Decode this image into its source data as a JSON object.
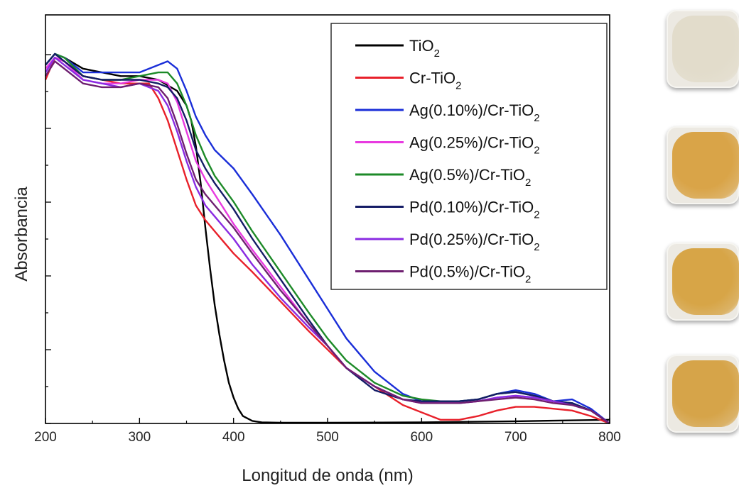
{
  "chart_data": {
    "type": "line",
    "xlabel": "Longitud de onda (nm)",
    "ylabel": "Absorbancia",
    "xlim": [
      200,
      800
    ],
    "ylim": [
      0,
      1.05
    ],
    "xticks": [
      200,
      300,
      400,
      500,
      600,
      700,
      800
    ],
    "grid": false,
    "legend_position": "top-right",
    "series": [
      {
        "name": "TiO2",
        "label_main": "TiO",
        "label_sub": "2",
        "label_tail": "",
        "color": "#000000",
        "x": [
          200,
          210,
          220,
          240,
          260,
          280,
          300,
          320,
          340,
          350,
          355,
          360,
          365,
          370,
          375,
          380,
          385,
          390,
          395,
          400,
          405,
          410,
          420,
          430,
          450,
          500,
          600,
          700,
          800
        ],
        "y": [
          0.97,
          1.0,
          0.99,
          0.96,
          0.95,
          0.94,
          0.94,
          0.93,
          0.9,
          0.86,
          0.82,
          0.75,
          0.65,
          0.53,
          0.42,
          0.32,
          0.24,
          0.17,
          0.11,
          0.07,
          0.04,
          0.02,
          0.007,
          0.003,
          0.002,
          0.002,
          0.003,
          0.006,
          0.01
        ]
      },
      {
        "name": "Cr-TiO2",
        "label_main": "Cr-TiO",
        "label_sub": "2",
        "label_tail": "",
        "color": "#e8202a",
        "x": [
          200,
          210,
          220,
          240,
          260,
          280,
          300,
          310,
          320,
          330,
          340,
          350,
          360,
          370,
          380,
          390,
          400,
          420,
          450,
          480,
          500,
          520,
          550,
          580,
          600,
          620,
          640,
          660,
          680,
          700,
          720,
          740,
          760,
          780,
          800
        ],
        "y": [
          0.93,
          0.99,
          0.98,
          0.94,
          0.93,
          0.92,
          0.92,
          0.92,
          0.88,
          0.82,
          0.74,
          0.66,
          0.59,
          0.55,
          0.52,
          0.49,
          0.46,
          0.41,
          0.33,
          0.25,
          0.2,
          0.15,
          0.1,
          0.05,
          0.03,
          0.01,
          0.01,
          0.02,
          0.035,
          0.045,
          0.045,
          0.04,
          0.035,
          0.02,
          0.0
        ]
      },
      {
        "name": "Ag(0.10%)/Cr-TiO2",
        "label_main": "Ag(0.10%)/Cr-TiO",
        "label_sub": "2",
        "label_tail": "",
        "color": "#1a2ed8",
        "x": [
          200,
          210,
          220,
          240,
          260,
          280,
          300,
          320,
          330,
          340,
          350,
          360,
          370,
          380,
          400,
          420,
          450,
          480,
          500,
          520,
          550,
          580,
          600,
          620,
          640,
          660,
          680,
          700,
          720,
          740,
          760,
          780,
          800
        ],
        "y": [
          0.97,
          1.0,
          0.99,
          0.95,
          0.95,
          0.95,
          0.95,
          0.97,
          0.98,
          0.96,
          0.9,
          0.83,
          0.78,
          0.74,
          0.69,
          0.62,
          0.51,
          0.39,
          0.31,
          0.23,
          0.14,
          0.08,
          0.06,
          0.06,
          0.06,
          0.065,
          0.08,
          0.09,
          0.08,
          0.06,
          0.065,
          0.04,
          0.0
        ]
      },
      {
        "name": "Ag(0.25%)/Cr-TiO2",
        "label_main": "Ag(0.25%)/Cr-TiO",
        "label_sub": "2",
        "label_tail": "",
        "color": "#e83ae0",
        "x": [
          200,
          210,
          220,
          240,
          260,
          280,
          300,
          320,
          330,
          340,
          350,
          360,
          370,
          380,
          400,
          420,
          450,
          480,
          500,
          520,
          550,
          580,
          600,
          620,
          640,
          660,
          680,
          700,
          720,
          740,
          760,
          780,
          800
        ],
        "y": [
          0.96,
          0.99,
          0.98,
          0.93,
          0.92,
          0.92,
          0.93,
          0.93,
          0.92,
          0.87,
          0.79,
          0.71,
          0.66,
          0.62,
          0.54,
          0.47,
          0.37,
          0.27,
          0.21,
          0.15,
          0.1,
          0.065,
          0.055,
          0.055,
          0.055,
          0.06,
          0.07,
          0.075,
          0.07,
          0.06,
          0.05,
          0.035,
          0.0
        ]
      },
      {
        "name": "Ag(0.5%)/Cr-TiO2",
        "label_main": "Ag(0.5%)/Cr-TiO",
        "label_sub": "2",
        "label_tail": "",
        "color": "#1d8a28",
        "x": [
          200,
          210,
          220,
          240,
          260,
          280,
          300,
          320,
          330,
          340,
          350,
          360,
          370,
          380,
          400,
          420,
          450,
          480,
          500,
          520,
          550,
          580,
          600,
          620,
          640,
          660,
          680,
          700,
          720,
          740,
          760,
          780,
          800
        ],
        "y": [
          0.97,
          1.0,
          0.99,
          0.94,
          0.93,
          0.93,
          0.94,
          0.95,
          0.95,
          0.92,
          0.86,
          0.78,
          0.72,
          0.67,
          0.6,
          0.52,
          0.41,
          0.3,
          0.23,
          0.17,
          0.11,
          0.075,
          0.065,
          0.06,
          0.06,
          0.065,
          0.08,
          0.085,
          0.075,
          0.06,
          0.055,
          0.035,
          0.0
        ]
      },
      {
        "name": "Pd(0.10%)/Cr-TiO2",
        "label_main": "Pd(0.10%)/Cr-TiO",
        "label_sub": "2",
        "label_tail": "",
        "color": "#141c66",
        "x": [
          200,
          210,
          220,
          240,
          260,
          280,
          300,
          320,
          330,
          340,
          350,
          360,
          370,
          380,
          400,
          420,
          450,
          480,
          500,
          520,
          550,
          580,
          600,
          620,
          640,
          660,
          680,
          700,
          720,
          740,
          760,
          780,
          800
        ],
        "y": [
          0.97,
          1.0,
          0.98,
          0.94,
          0.93,
          0.93,
          0.93,
          0.92,
          0.91,
          0.88,
          0.82,
          0.74,
          0.69,
          0.65,
          0.58,
          0.5,
          0.39,
          0.28,
          0.21,
          0.15,
          0.09,
          0.065,
          0.06,
          0.06,
          0.06,
          0.065,
          0.08,
          0.085,
          0.075,
          0.06,
          0.055,
          0.035,
          0.0
        ]
      },
      {
        "name": "Pd(0.25%)/Cr-TiO2",
        "label_main": "Pd(0.25%)/Cr-TiO",
        "label_sub": "2",
        "label_tail": "",
        "color": "#8a2be2",
        "x": [
          200,
          210,
          220,
          240,
          260,
          280,
          300,
          320,
          330,
          340,
          350,
          360,
          370,
          380,
          400,
          420,
          450,
          480,
          500,
          520,
          550,
          580,
          600,
          620,
          640,
          660,
          680,
          700,
          720,
          740,
          760,
          780,
          800
        ],
        "y": [
          0.95,
          0.99,
          0.97,
          0.93,
          0.92,
          0.91,
          0.92,
          0.9,
          0.86,
          0.79,
          0.71,
          0.64,
          0.59,
          0.56,
          0.5,
          0.43,
          0.34,
          0.26,
          0.21,
          0.15,
          0.1,
          0.065,
          0.055,
          0.055,
          0.055,
          0.06,
          0.07,
          0.075,
          0.07,
          0.06,
          0.05,
          0.035,
          0.0
        ]
      },
      {
        "name": "Pd(0.5%)/Cr-TiO2",
        "label_main": "Pd(0.5%)/Cr-TiO",
        "label_sub": "2",
        "label_tail": "",
        "color": "#6e1f70",
        "x": [
          200,
          210,
          220,
          240,
          260,
          280,
          300,
          320,
          330,
          340,
          350,
          360,
          370,
          380,
          400,
          420,
          450,
          480,
          500,
          520,
          550,
          580,
          600,
          620,
          640,
          660,
          680,
          700,
          720,
          740,
          760,
          780,
          800
        ],
        "y": [
          0.94,
          0.98,
          0.96,
          0.92,
          0.91,
          0.91,
          0.92,
          0.91,
          0.88,
          0.81,
          0.73,
          0.66,
          0.62,
          0.59,
          0.53,
          0.46,
          0.36,
          0.27,
          0.21,
          0.15,
          0.1,
          0.065,
          0.055,
          0.055,
          0.055,
          0.06,
          0.065,
          0.07,
          0.065,
          0.055,
          0.05,
          0.035,
          0.0
        ]
      }
    ]
  },
  "samples": {
    "powder_colors": [
      "#e2dccb",
      "#d9a448",
      "#d7a547",
      "#d6a449"
    ]
  }
}
